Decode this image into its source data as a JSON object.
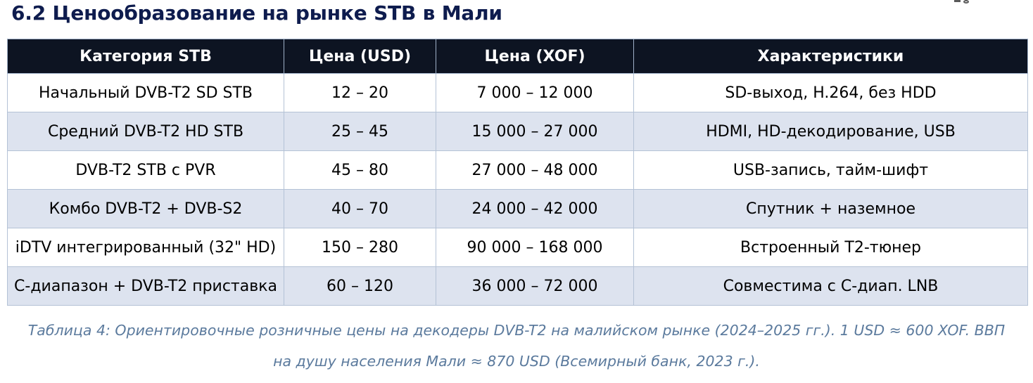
{
  "page_title": "6.2 Ценообразование на рынке STB в Мали",
  "table": {
    "headers": [
      "Категория STB",
      "Цена (USD)",
      "Цена (XOF)",
      "Характеристики"
    ],
    "rows": [
      [
        "Начальный DVB-T2 SD STB",
        "12 – 20",
        "7 000 – 12 000",
        "SD-выход, H.264, без HDD"
      ],
      [
        "Средний DVB-T2 HD STB",
        "25 – 45",
        "15 000 – 27 000",
        "HDMI, HD-декодирование, USB"
      ],
      [
        "DVB-T2 STB с PVR",
        "45 – 80",
        "27 000 – 48 000",
        "USB-запись, тайм-шифт"
      ],
      [
        "Комбо DVB-T2 + DVB-S2",
        "40 – 70",
        "24 000 – 42 000",
        "Спутник + наземное"
      ],
      [
        "iDTV интегрированный (32\" HD)",
        "150 – 280",
        "90 000 – 168 000",
        "Встроенный Т2-тюнер"
      ],
      [
        "C-диапазон + DVB-T2 приставка",
        "60 – 120",
        "36 000 – 72 000",
        "Совместима с C-диап. LNB"
      ]
    ]
  },
  "caption": "Таблица 4: Ориентировочные розничные цены на декодеры DVB-T2 на малийском рынке (2024–2025 гг.). 1 USD ≈ 600 XOF. ВВП на душу населения Мали ≈ 870 USD (Всемирный банк, 2023 г.).",
  "colors": {
    "title_text": "#0e1c4e",
    "header_bg": "#0d1422",
    "header_text": "#ffffff",
    "row_alt_bg": "#dde3ef",
    "cell_border": "#b4c2d6",
    "caption_text": "#5b7a9d"
  }
}
